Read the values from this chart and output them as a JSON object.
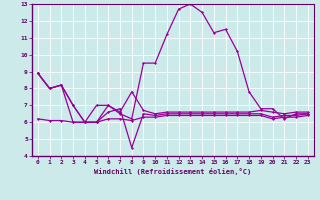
{
  "xlabel": "Windchill (Refroidissement éolien,°C)",
  "background_color": "#cceaea",
  "grid_color": "#aadddd",
  "line_color": "#990099",
  "axis_color": "#660066",
  "xlim": [
    -0.5,
    23.5
  ],
  "ylim": [
    4,
    13
  ],
  "yticks": [
    4,
    5,
    6,
    7,
    8,
    9,
    10,
    11,
    12,
    13
  ],
  "xticks": [
    0,
    1,
    2,
    3,
    4,
    5,
    6,
    7,
    8,
    9,
    10,
    11,
    12,
    13,
    14,
    15,
    16,
    17,
    18,
    19,
    20,
    21,
    22,
    23
  ],
  "s1_y": [
    8.9,
    8.0,
    8.2,
    7.0,
    6.0,
    6.0,
    7.0,
    6.5,
    6.2,
    9.5,
    9.5,
    11.2,
    12.7,
    13.0,
    12.5,
    11.3,
    11.5,
    10.2,
    7.8,
    6.8,
    6.8,
    6.2,
    6.5,
    6.5
  ],
  "s2_y": [
    8.9,
    8.0,
    8.2,
    7.0,
    6.0,
    7.0,
    7.0,
    6.6,
    7.8,
    6.7,
    6.5,
    6.6,
    6.6,
    6.6,
    6.6,
    6.6,
    6.6,
    6.6,
    6.6,
    6.7,
    6.6,
    6.5,
    6.6,
    6.6
  ],
  "s3_y": [
    8.9,
    8.0,
    8.2,
    6.0,
    6.0,
    6.0,
    6.6,
    6.8,
    4.5,
    6.5,
    6.4,
    6.5,
    6.5,
    6.5,
    6.5,
    6.5,
    6.5,
    6.5,
    6.5,
    6.5,
    6.3,
    6.4,
    6.4,
    6.5
  ],
  "s4_y": [
    6.2,
    6.1,
    6.1,
    6.0,
    6.0,
    6.0,
    6.2,
    6.2,
    6.1,
    6.3,
    6.3,
    6.4,
    6.4,
    6.4,
    6.4,
    6.4,
    6.4,
    6.4,
    6.4,
    6.4,
    6.2,
    6.3,
    6.3,
    6.4
  ]
}
